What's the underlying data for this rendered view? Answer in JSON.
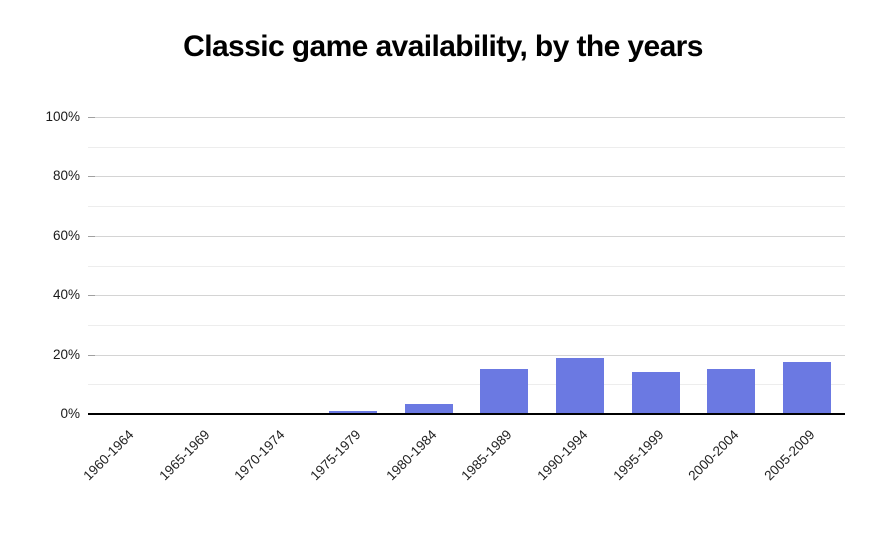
{
  "chart_data": {
    "type": "bar",
    "title": "Classic game availability, by the years",
    "categories": [
      "1960-1964",
      "1965-1969",
      "1970-1974",
      "1975-1979",
      "1980-1984",
      "1985-1989",
      "1990-1994",
      "1995-1999",
      "2000-2004",
      "2005-2009"
    ],
    "values": [
      0.2,
      0.2,
      0.2,
      1,
      3.5,
      15,
      19,
      14,
      15,
      17.5
    ],
    "unit": "%",
    "xlabel": "",
    "ylabel": "",
    "ylim": [
      0,
      100
    ],
    "y_major_ticks": [
      0,
      20,
      40,
      60,
      80,
      100
    ],
    "y_tick_labels": [
      "0%",
      "20%",
      "40%",
      "60%",
      "80%",
      "100%"
    ],
    "y_minor_grid_step": 10,
    "grid": "horizontal",
    "legend": "none",
    "colors": {
      "bar_fill": "#6b79e2",
      "axis_line": "#000000",
      "major_gridline": "#d4d4d4",
      "minor_gridline": "#ededed",
      "tick_text": "#1a1a1a",
      "title_text": "#000000",
      "background": "#ffffff"
    }
  }
}
